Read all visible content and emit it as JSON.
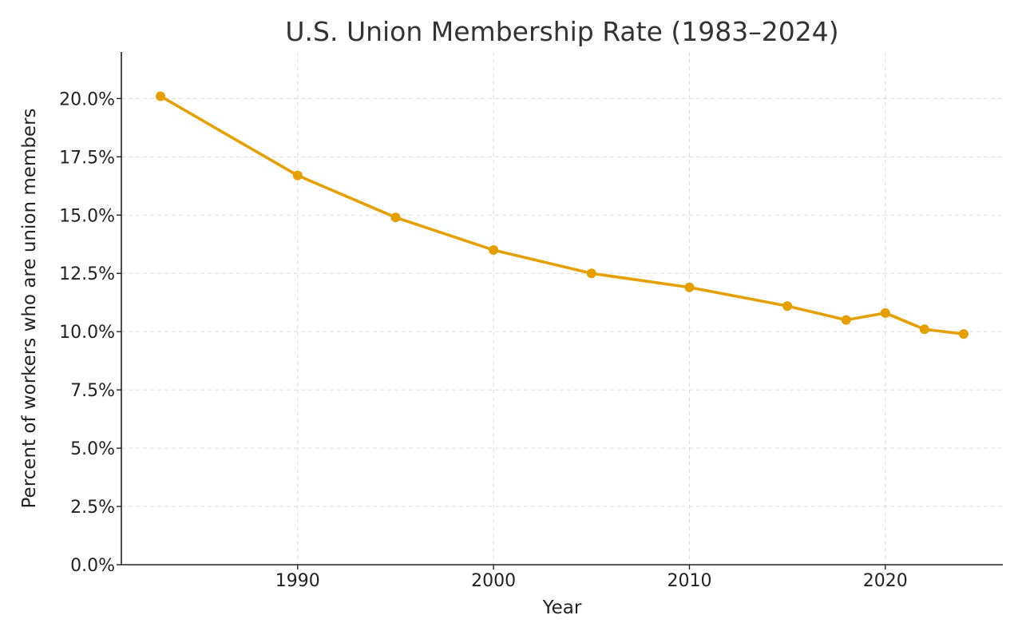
{
  "chart_data": {
    "type": "line",
    "title": "U.S. Union Membership Rate (1983–2024)",
    "xlabel": "Year",
    "ylabel": "Percent of workers who are union members",
    "xlim": [
      1981,
      2026
    ],
    "ylim": [
      0,
      22
    ],
    "x_ticks": [
      1990,
      2000,
      2010,
      2020
    ],
    "x_tick_labels": [
      "1990",
      "2000",
      "2010",
      "2020"
    ],
    "y_ticks": [
      0,
      2.5,
      5,
      7.5,
      10,
      12.5,
      15,
      17.5,
      20
    ],
    "y_tick_labels": [
      "0.0%",
      "2.5%",
      "5.0%",
      "7.5%",
      "10.0%",
      "12.5%",
      "15.0%",
      "17.5%",
      "20.0%"
    ],
    "grid": true,
    "legend": "none",
    "series": [
      {
        "color": "#E69F00",
        "x": [
          1983,
          1990,
          1995,
          2000,
          2005,
          2010,
          2015,
          2018,
          2020,
          2022,
          2024
        ],
        "y": [
          20.1,
          16.7,
          14.9,
          13.5,
          12.5,
          11.9,
          11.1,
          10.5,
          10.8,
          10.1,
          9.9
        ]
      }
    ]
  }
}
